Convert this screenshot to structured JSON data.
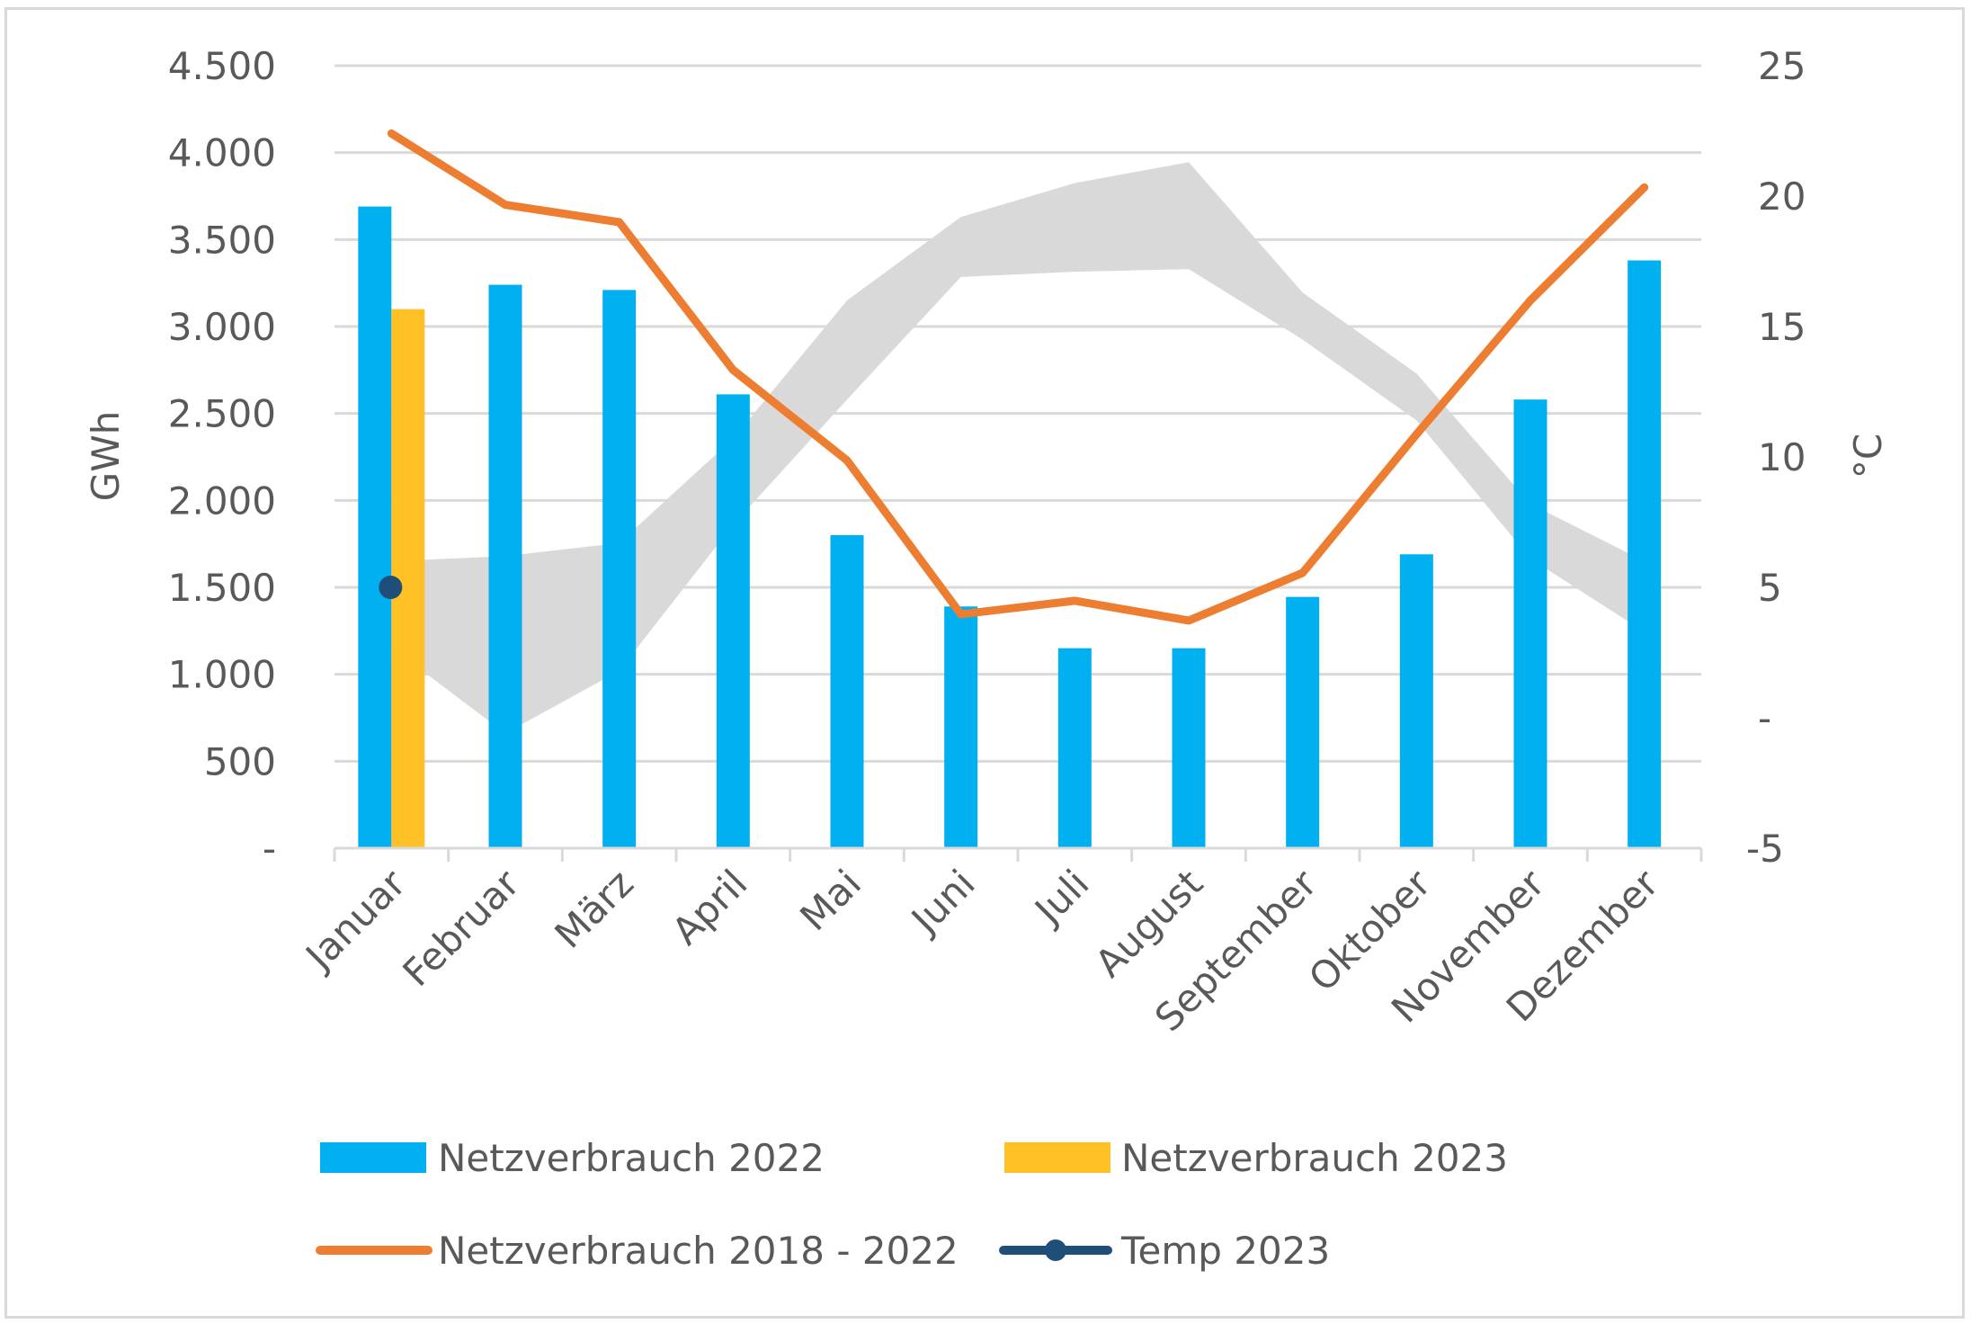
{
  "chart_data": {
    "type": "bar",
    "title": "",
    "xlabel": "",
    "ylabel": "GWh",
    "y2label": "°C",
    "ylim": [
      0,
      4500
    ],
    "y2lim": [
      -5,
      25
    ],
    "grid": true,
    "legend_position": "bottom",
    "categories": [
      "Januar",
      "Februar",
      "März",
      "April",
      "Mai",
      "Juni",
      "Juli",
      "August",
      "September",
      "Oktober",
      "November",
      "Dezember"
    ],
    "y_ticks": [
      "-",
      "500",
      "1.000",
      "1.500",
      "2.000",
      "2.500",
      "3.000",
      "3.500",
      "4.000",
      "4.500"
    ],
    "y2_ticks": [
      "-5",
      "-",
      "5",
      "10",
      "15",
      "20",
      "25"
    ],
    "series": [
      {
        "name": "Netzverbrauch 2022",
        "type": "bar",
        "axis": "left",
        "color": "#00B0F0",
        "values": [
          3690,
          3240,
          3210,
          2610,
          1800,
          1390,
          1150,
          1150,
          1445,
          1690,
          2580,
          3380
        ]
      },
      {
        "name": "Netzverbrauch 2023",
        "type": "bar",
        "axis": "left",
        "color": "#FFC125",
        "values": [
          3100,
          null,
          null,
          null,
          null,
          null,
          null,
          null,
          null,
          null,
          null,
          null
        ]
      },
      {
        "name": "Netzverbrauch 2018 - 2022",
        "type": "line",
        "axis": "left",
        "color": "#ED7D31",
        "values": [
          4110,
          3700,
          3600,
          2750,
          2230,
          1345,
          1423,
          1309,
          1583,
          2380,
          3150,
          3800
        ]
      },
      {
        "name": "Temp 2023",
        "type": "line-marker",
        "axis": "right",
        "color": "#1F4E79",
        "values": [
          5.0,
          null,
          null,
          null,
          null,
          null,
          null,
          null,
          null,
          null,
          null,
          null
        ]
      },
      {
        "name": "Temperaturbereich",
        "type": "area-range",
        "axis": "right",
        "color": "#D9D9D9",
        "in_legend": false,
        "upper": [
          6.0,
          6.2,
          6.7,
          10.7,
          16.0,
          19.2,
          20.5,
          21.3,
          16.3,
          13.2,
          8.2,
          6.0
        ],
        "lower": [
          2.7,
          -0.6,
          1.8,
          7.4,
          12.2,
          16.9,
          17.1,
          17.2,
          14.5,
          11.4,
          6.1,
          3.3
        ]
      }
    ],
    "legend": [
      {
        "label": "Netzverbrauch 2022",
        "kind": "bar",
        "color": "#00B0F0"
      },
      {
        "label": "Netzverbrauch 2023",
        "kind": "bar",
        "color": "#FFC125"
      },
      {
        "label": "Netzverbrauch 2018 - 2022",
        "kind": "line",
        "color": "#ED7D31"
      },
      {
        "label": "Temp 2023",
        "kind": "line-marker",
        "color": "#1F4E79"
      }
    ]
  },
  "colors": {
    "gridline": "#D9D9D9",
    "axis": "#D9D9D9",
    "text": "#595959"
  }
}
